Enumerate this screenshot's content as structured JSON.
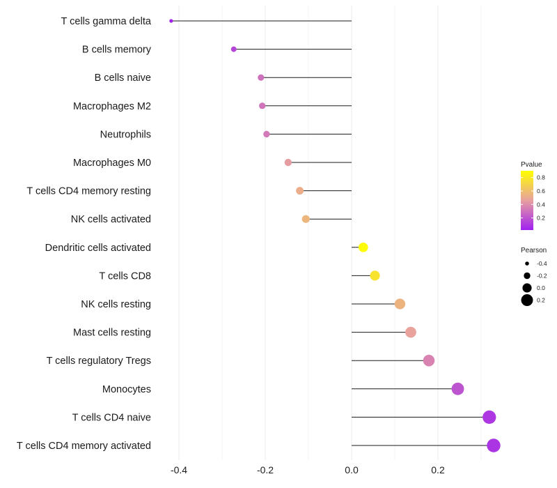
{
  "chart_data": {
    "type": "scatter",
    "subtype": "lollipop",
    "title": "",
    "xlabel": "",
    "ylabel": "",
    "xlim": [
      -0.44,
      0.36
    ],
    "xticks": [
      -0.4,
      -0.2,
      0.0,
      0.2
    ],
    "xtick_labels": [
      "-0.4",
      "-0.2",
      "0.0",
      "0.2"
    ],
    "grid": "vertical",
    "points": [
      {
        "label": "T cells gamma delta",
        "pearson": -0.418,
        "pvalue": 0.02
      },
      {
        "label": "B cells memory",
        "pearson": -0.273,
        "pvalue": 0.15
      },
      {
        "label": "B cells naive",
        "pearson": -0.21,
        "pvalue": 0.3
      },
      {
        "label": "Macrophages M2",
        "pearson": -0.207,
        "pvalue": 0.31
      },
      {
        "label": "Neutrophils",
        "pearson": -0.197,
        "pvalue": 0.33
      },
      {
        "label": "Macrophages M0",
        "pearson": -0.147,
        "pvalue": 0.45
      },
      {
        "label": "T cells CD4 memory resting",
        "pearson": -0.12,
        "pvalue": 0.52
      },
      {
        "label": "NK cells activated",
        "pearson": -0.106,
        "pvalue": 0.56
      },
      {
        "label": "Dendritic cells activated",
        "pearson": 0.027,
        "pvalue": 0.88
      },
      {
        "label": "T cells CD8",
        "pearson": 0.054,
        "pvalue": 0.77
      },
      {
        "label": "NK cells resting",
        "pearson": 0.112,
        "pvalue": 0.55
      },
      {
        "label": "Mast cells resting",
        "pearson": 0.137,
        "pvalue": 0.47
      },
      {
        "label": "T cells regulatory  Tregs ",
        "pearson": 0.179,
        "pvalue": 0.36
      },
      {
        "label": "Monocytes",
        "pearson": 0.246,
        "pvalue": 0.2
      },
      {
        "label": "T cells CD4 naive",
        "pearson": 0.319,
        "pvalue": 0.1
      },
      {
        "label": "T cells CD4 memory activated",
        "pearson": 0.329,
        "pvalue": 0.09
      }
    ],
    "legends": {
      "color": {
        "title": "Pvalue",
        "ticks": [
          0.8,
          0.6,
          0.4,
          0.2
        ],
        "tick_labels": [
          "0.8",
          "0.6",
          "0.4",
          "0.2"
        ],
        "range": [
          0.02,
          0.9
        ],
        "low_color": "#a020f0",
        "mid_color": "#e8a0a0",
        "high_color": "#ffff00"
      },
      "size": {
        "title": "Pearson",
        "values": [
          -0.4,
          -0.2,
          0.0,
          0.2
        ],
        "labels": [
          "-0.4",
          "-0.2",
          "0.0",
          "0.2"
        ]
      }
    }
  }
}
